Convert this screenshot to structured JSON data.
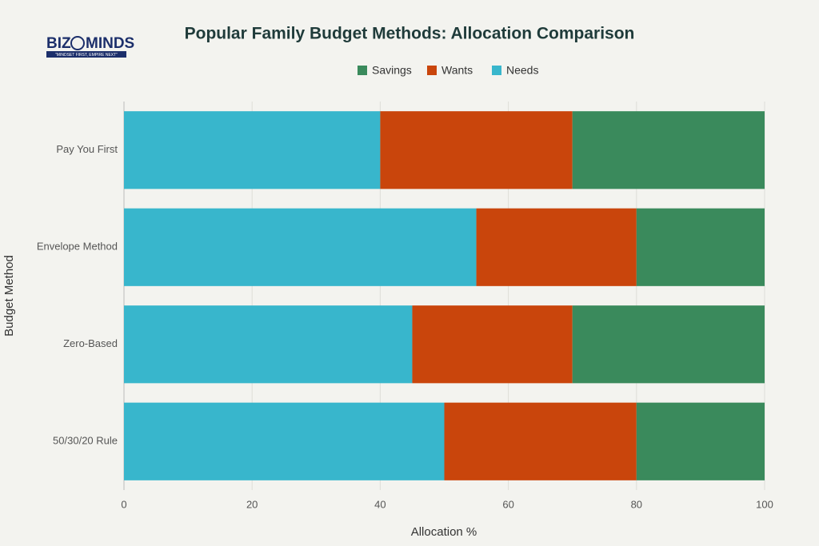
{
  "logo": {
    "left": "BIZ",
    "right": "MINDS",
    "tagline": "“MINDSET FIRST, EMPIRE NEXT”"
  },
  "chart_data": {
    "type": "stacked-barh",
    "title": "Popular Family Budget Methods: Allocation Comparison",
    "x_label": "Allocation %",
    "y_label": "Budget Method",
    "categories": [
      "Pay You First",
      "Envelope Method",
      "Zero-Based",
      "50/30/20 Rule"
    ],
    "series": [
      {
        "name": "Savings",
        "color": "#3a8a5c",
        "values": [
          30,
          20,
          30,
          20
        ]
      },
      {
        "name": "Wants",
        "color": "#c9450c",
        "values": [
          30,
          25,
          25,
          30
        ]
      },
      {
        "name": "Needs",
        "color": "#38b6cc",
        "values": [
          40,
          55,
          45,
          50
        ]
      }
    ],
    "xlim": [
      0,
      100
    ],
    "xticks": [
      0,
      20,
      40,
      60,
      80,
      100
    ],
    "grid": true,
    "legend": "top"
  }
}
